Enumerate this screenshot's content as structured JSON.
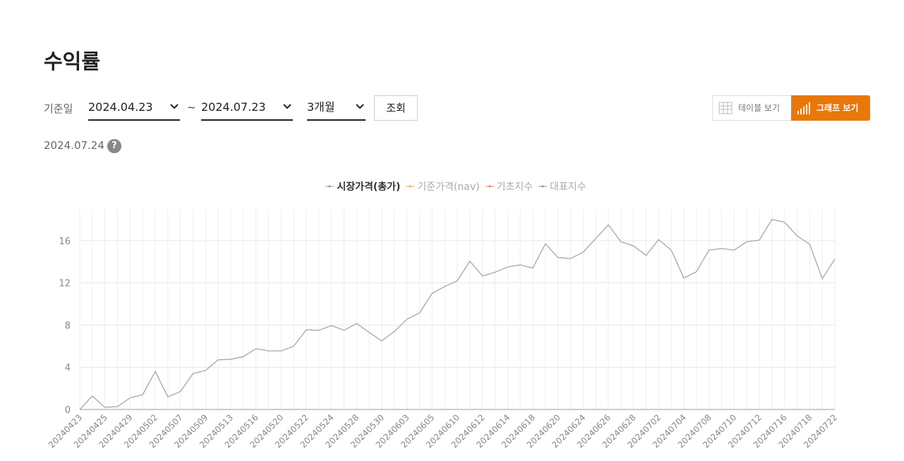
{
  "header": {
    "title": "수익률"
  },
  "filter": {
    "label": "기준일",
    "start_date": "2024.04.23",
    "separator": "~",
    "end_date": "2024.07.23",
    "period": "3개월",
    "search_button": "조회"
  },
  "view_toggle": {
    "table": "테이블 보기",
    "graph": "그래프 보기"
  },
  "as_of_date": "2024.07.24",
  "help_icon": "?",
  "chart_data": {
    "type": "line",
    "legend": [
      {
        "name": "시장가격(총가)",
        "color": "#999999",
        "active": true
      },
      {
        "name": "기준가격(nav)",
        "color": "#f5a05a",
        "active": false
      },
      {
        "name": "기초지수",
        "color": "#f07860",
        "active": false
      },
      {
        "name": "대표지수",
        "color": "#8a8ab8",
        "active": false
      }
    ],
    "categories": [
      "20240423",
      null,
      "20240425",
      null,
      "20240429",
      null,
      "20240502",
      null,
      "20240507",
      null,
      "20240509",
      null,
      "20240513",
      null,
      "20240516",
      null,
      "20240520",
      null,
      "20240522",
      null,
      "20240524",
      null,
      "20240528",
      null,
      "20240530",
      null,
      "20240603",
      null,
      "20240605",
      null,
      "20240610",
      null,
      "20240612",
      null,
      "20240614",
      null,
      "20240618",
      null,
      "20240620",
      null,
      "20240624",
      null,
      "20240626",
      null,
      "20240628",
      null,
      "20240702",
      null,
      "20240704",
      null,
      "20240708",
      null,
      "20240710",
      null,
      "20240712",
      null,
      "20240716",
      null,
      "20240718",
      null,
      "20240722"
    ],
    "series": [
      {
        "name": "시장가격(총가)",
        "color": "#a0a0a0",
        "values": [
          0,
          1.27,
          0.2,
          0.27,
          1.1,
          1.4,
          3.6,
          1.2,
          1.7,
          3.4,
          3.7,
          4.7,
          4.75,
          5.0,
          5.75,
          5.55,
          5.55,
          6.0,
          7.55,
          7.5,
          7.95,
          7.5,
          8.15,
          7.3,
          6.5,
          7.4,
          8.55,
          9.15,
          11.0,
          11.65,
          12.2,
          14.05,
          12.65,
          13.0,
          13.5,
          13.7,
          13.4,
          15.7,
          14.4,
          14.3,
          14.9,
          16.2,
          17.5,
          15.9,
          15.5,
          14.6,
          16.1,
          15.1,
          12.45,
          13.05,
          15.1,
          15.25,
          15.1,
          15.9,
          16.05,
          18.0,
          17.75,
          16.45,
          15.65,
          12.4,
          14.25
        ]
      }
    ],
    "ylim": [
      0,
      19
    ],
    "yticks": [
      0,
      4,
      8,
      12,
      16
    ],
    "grid": true
  }
}
